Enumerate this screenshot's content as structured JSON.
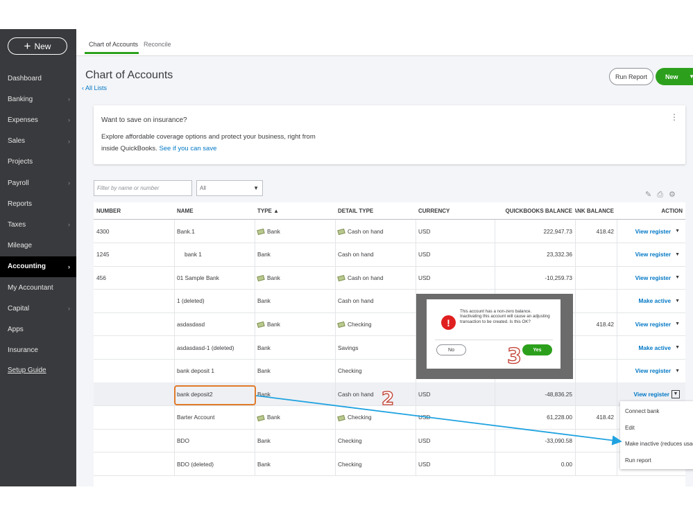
{
  "sidebar": {
    "new_label": "New",
    "items": [
      {
        "label": "Dashboard",
        "chevron": false
      },
      {
        "label": "Banking",
        "chevron": true
      },
      {
        "label": "Expenses",
        "chevron": true
      },
      {
        "label": "Sales",
        "chevron": true
      },
      {
        "label": "Projects",
        "chevron": false
      },
      {
        "label": "Payroll",
        "chevron": true
      },
      {
        "label": "Reports",
        "chevron": false
      },
      {
        "label": "Taxes",
        "chevron": true
      },
      {
        "label": "Mileage",
        "chevron": false
      },
      {
        "label": "Accounting",
        "chevron": true,
        "active": true
      },
      {
        "label": "My Accountant",
        "chevron": false
      },
      {
        "label": "Capital",
        "chevron": true
      },
      {
        "label": "Apps",
        "chevron": false
      },
      {
        "label": "Insurance",
        "chevron": false
      },
      {
        "label": "Setup Guide",
        "chevron": false
      }
    ]
  },
  "tabs": [
    "Chart of Accounts",
    "Reconcile"
  ],
  "header": {
    "title": "Chart of Accounts",
    "back_link": "All Lists",
    "run_report": "Run Report",
    "new_button": "New"
  },
  "promo": {
    "title": "Want to save on insurance?",
    "body": "Explore affordable coverage options and protect your business, right from inside QuickBooks.",
    "link": "See if you can save"
  },
  "filters": {
    "search_placeholder": "Filter by name or number",
    "type_select": "All"
  },
  "table": {
    "columns": [
      "NUMBER",
      "NAME",
      "TYPE ▲",
      "DETAIL TYPE",
      "CURRENCY",
      "QUICKBOOKS BALANCE",
      "BANK BALANCE",
      "ACTION"
    ],
    "rows": [
      {
        "number": "4300",
        "name": "Bank.1",
        "type": "Bank",
        "type_icon": true,
        "detail": "Cash on hand",
        "detail_icon": true,
        "currency": "USD",
        "qb_balance": "222,947.73",
        "bank_balance": "418.42",
        "action": "View register"
      },
      {
        "number": "1245",
        "name": "bank 1",
        "type": "Bank",
        "type_icon": false,
        "detail": "Cash on hand",
        "detail_icon": false,
        "currency": "USD",
        "qb_balance": "23,332.36",
        "bank_balance": "",
        "action": "View register"
      },
      {
        "number": "456",
        "name": "01 Sample Bank",
        "type": "Bank",
        "type_icon": true,
        "detail": "Cash on hand",
        "detail_icon": true,
        "currency": "USD",
        "qb_balance": "-10,259.73",
        "bank_balance": "",
        "action": "View register"
      },
      {
        "number": "",
        "name": "1 (deleted)",
        "type": "Bank",
        "type_icon": false,
        "detail": "Cash on hand",
        "detail_icon": false,
        "currency": "",
        "qb_balance": "",
        "bank_balance": "",
        "action": "Make active"
      },
      {
        "number": "",
        "name": "asdasdasd",
        "type": "Bank",
        "type_icon": true,
        "detail": "Checking",
        "detail_icon": true,
        "currency": "",
        "qb_balance": "",
        "bank_balance": "418.42",
        "action": "View register"
      },
      {
        "number": "",
        "name": "asdasdasd-1 (deleted)",
        "type": "Bank",
        "type_icon": false,
        "detail": "Savings",
        "detail_icon": false,
        "currency": "",
        "qb_balance": "",
        "bank_balance": "",
        "action": "Make active"
      },
      {
        "number": "",
        "name": "bank deposit 1",
        "type": "Bank",
        "type_icon": false,
        "detail": "Checking",
        "detail_icon": false,
        "currency": "",
        "qb_balance": "",
        "bank_balance": "",
        "action": "View register"
      },
      {
        "number": "",
        "name": "bank deposit2",
        "type": "Bank",
        "type_icon": false,
        "detail": "Cash on hand",
        "detail_icon": false,
        "currency": "USD",
        "qb_balance": "-48,836.25",
        "bank_balance": "",
        "action": "View register",
        "highlight": true
      },
      {
        "number": "",
        "name": "Barter Account",
        "type": "Bank",
        "type_icon": true,
        "detail": "Checking",
        "detail_icon": true,
        "currency": "USD",
        "qb_balance": "61,228.00",
        "bank_balance": "418.42",
        "action": ""
      },
      {
        "number": "",
        "name": "BDO",
        "type": "Bank",
        "type_icon": false,
        "detail": "Checking",
        "detail_icon": false,
        "currency": "USD",
        "qb_balance": "-33,090.58",
        "bank_balance": "",
        "action": ""
      },
      {
        "number": "",
        "name": "BDO (deleted)",
        "type": "Bank",
        "type_icon": false,
        "detail": "Checking",
        "detail_icon": false,
        "currency": "USD",
        "qb_balance": "0.00",
        "bank_balance": "",
        "action": ""
      }
    ]
  },
  "action_menu": [
    "Connect bank",
    "Edit",
    "Make inactive (reduces usage)",
    "Run report"
  ],
  "dialog": {
    "message": "This account has a non-zero balance. Inactivating this account will cause an adjusting transaction to be created. Is this OK?",
    "no": "No",
    "yes": "Yes"
  },
  "annotations": {
    "step2": "2",
    "step3": "3"
  },
  "colors": {
    "accent_green": "#2ca01c",
    "link_blue": "#0077c5",
    "sidebar_bg": "#393a3d",
    "annotation_orange": "#e07a2a",
    "annotation_red": "#c0392b",
    "arrow_blue": "#1fa2e0"
  }
}
